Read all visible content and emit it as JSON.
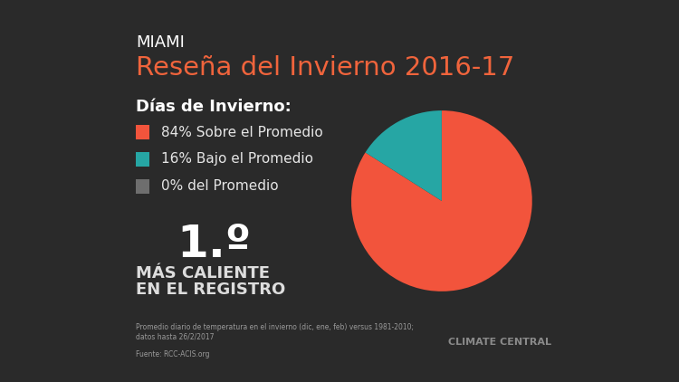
{
  "chart_data": {
    "type": "pie",
    "title": "Reseña del Invierno 2016-17",
    "subtitle": "MIAMI",
    "categories": [
      "84% Sobre el Promedio",
      "16% Bajo el Promedio",
      "0% del Promedio"
    ],
    "values": [
      84,
      16,
      0
    ],
    "colors": [
      "#f2543c",
      "#26a6a4",
      "#6e6e6e"
    ],
    "annotations": {
      "legend_heading": "Días de Invierno:",
      "rank": "1.º",
      "rank_text": "MÁS CALIENTE\nEN EL REGISTRO",
      "footnote": "Promedio diario de temperatura en el invierno (dic, ene, feb) versus 1981-2010;\ndatos hasta 26/2/2017",
      "source": "Fuente: RCC-ACIS.org",
      "logo": "CLIMATE CENTRAL"
    }
  }
}
